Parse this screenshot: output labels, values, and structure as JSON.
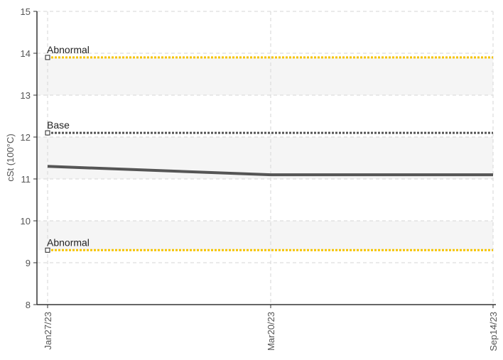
{
  "chart_data": {
    "type": "line",
    "ylabel": "cSt (100°C)",
    "ylim": [
      8,
      15
    ],
    "y_ticks": [
      8,
      9,
      10,
      11,
      12,
      13,
      14,
      15
    ],
    "x_categories": [
      "Jan27/23",
      "Mar20/23",
      "Sep14/23"
    ],
    "grid": true,
    "series": [
      {
        "values": [
          11.3,
          11.1,
          11.1
        ],
        "color": "#555555"
      }
    ],
    "reference_lines": [
      {
        "name": "Abnormal",
        "value": 13.9,
        "color": "#f5c400"
      },
      {
        "name": "Base",
        "value": 12.1,
        "color": "#555555"
      },
      {
        "name": "Abnormal",
        "value": 9.3,
        "color": "#f5c400"
      }
    ],
    "bands": [
      {
        "from": 13.9,
        "to": 13.0,
        "color": "#f5f5f5"
      },
      {
        "from": 12.0,
        "to": 11.0,
        "color": "#f5f5f5"
      },
      {
        "from": 10.0,
        "to": 9.3,
        "color": "#f5f5f5"
      }
    ]
  }
}
